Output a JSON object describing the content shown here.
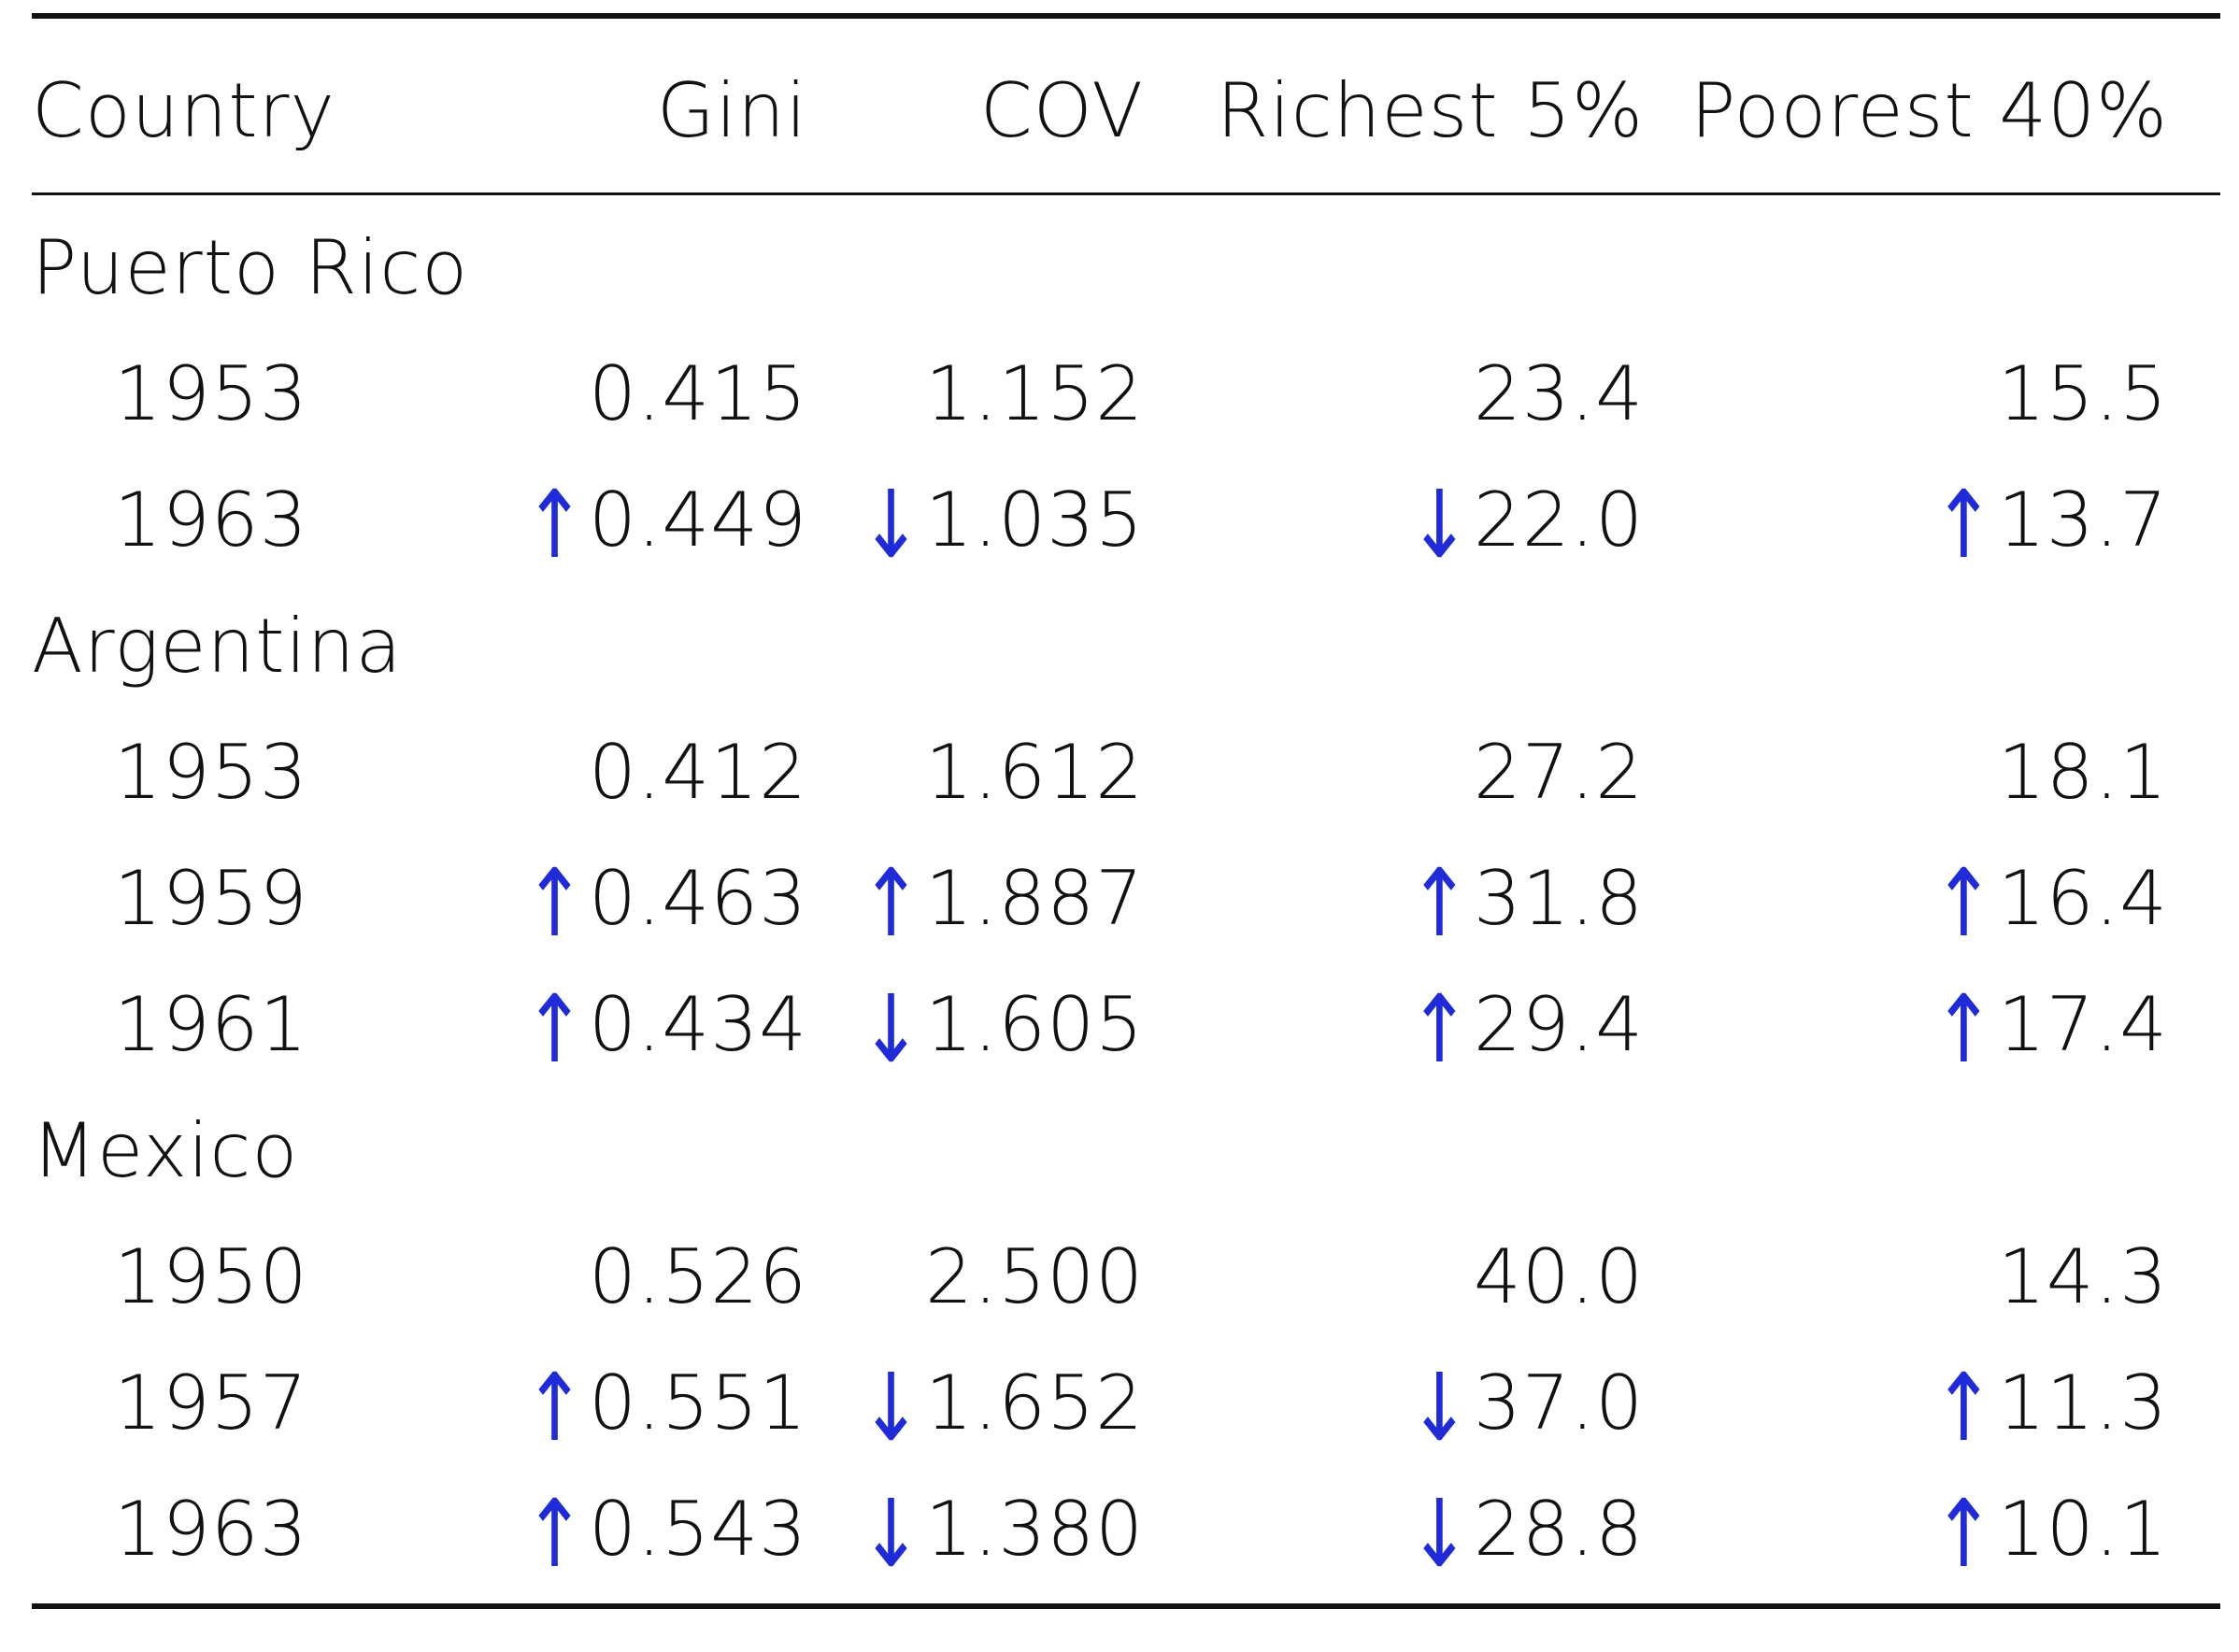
{
  "table": {
    "headers": [
      "Country",
      "Gini",
      "COV",
      "Richest 5%",
      "Poorest 40%"
    ],
    "groups": [
      {
        "country": "Puerto Rico",
        "rows": [
          {
            "year": "1953",
            "cells": [
              {
                "arrow": "",
                "value": "0.415"
              },
              {
                "arrow": "",
                "value": "1.152"
              },
              {
                "arrow": "",
                "value": "23.4"
              },
              {
                "arrow": "",
                "value": "15.5"
              }
            ]
          },
          {
            "year": "1963",
            "cells": [
              {
                "arrow": "↑",
                "value": "0.449"
              },
              {
                "arrow": "↓",
                "value": "1.035"
              },
              {
                "arrow": "↓",
                "value": "22.0"
              },
              {
                "arrow": "↑",
                "value": "13.7"
              }
            ]
          }
        ]
      },
      {
        "country": "Argentina",
        "rows": [
          {
            "year": "1953",
            "cells": [
              {
                "arrow": "",
                "value": "0.412"
              },
              {
                "arrow": "",
                "value": "1.612"
              },
              {
                "arrow": "",
                "value": "27.2"
              },
              {
                "arrow": "",
                "value": "18.1"
              }
            ]
          },
          {
            "year": "1959",
            "cells": [
              {
                "arrow": "↑",
                "value": "0.463"
              },
              {
                "arrow": "↑",
                "value": "1.887"
              },
              {
                "arrow": "↑",
                "value": "31.8"
              },
              {
                "arrow": "↑",
                "value": "16.4"
              }
            ]
          },
          {
            "year": "1961",
            "cells": [
              {
                "arrow": "↑",
                "value": "0.434"
              },
              {
                "arrow": "↓",
                "value": "1.605"
              },
              {
                "arrow": "↑",
                "value": "29.4"
              },
              {
                "arrow": "↑",
                "value": "17.4"
              }
            ]
          }
        ]
      },
      {
        "country": "Mexico",
        "rows": [
          {
            "year": "1950",
            "cells": [
              {
                "arrow": "",
                "value": "0.526"
              },
              {
                "arrow": "",
                "value": "2.500"
              },
              {
                "arrow": "",
                "value": "40.0"
              },
              {
                "arrow": "",
                "value": "14.3"
              }
            ]
          },
          {
            "year": "1957",
            "cells": [
              {
                "arrow": "↑",
                "value": "0.551"
              },
              {
                "arrow": "↓",
                "value": "1.652"
              },
              {
                "arrow": "↓",
                "value": "37.0"
              },
              {
                "arrow": "↑",
                "value": "11.3"
              }
            ]
          },
          {
            "year": "1963",
            "cells": [
              {
                "arrow": "↑",
                "value": "0.543"
              },
              {
                "arrow": "↓",
                "value": "1.380"
              },
              {
                "arrow": "↓",
                "value": "28.8"
              },
              {
                "arrow": "↑",
                "value": "10.1"
              }
            ]
          }
        ]
      }
    ]
  },
  "colors": {
    "text": "#111111",
    "arrow": "#1f2bd9",
    "rule": "#111111"
  }
}
